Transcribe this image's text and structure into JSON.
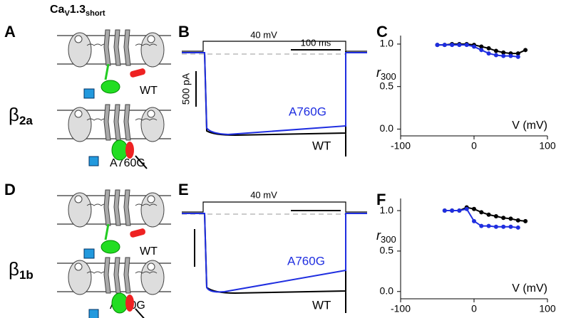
{
  "construct": {
    "base": "Ca",
    "sub1": "V",
    "mid": "1.3",
    "sub2": "short"
  },
  "panels": [
    "A",
    "B",
    "C",
    "D",
    "E",
    "F"
  ],
  "beta": [
    {
      "symbol": "β",
      "sub": "2a"
    },
    {
      "symbol": "β",
      "sub": "1b"
    }
  ],
  "wt": "WT",
  "mutant": "A760G",
  "voltage": "40 mV",
  "time_scale": "100 ms",
  "current_scale": "500 pA",
  "chart_data": [
    {
      "type": "scatter",
      "xlabel": "V (mV)",
      "ylabel": {
        "base": "r",
        "sub": "300"
      },
      "xlim": [
        -100,
        100
      ],
      "xticks": [
        -100,
        0,
        100
      ],
      "ylim": [
        -0.08,
        1.1
      ],
      "yticks": [
        {
          "value": 0,
          "label": "0.0"
        },
        {
          "value": 0.5,
          "label": "0.5"
        },
        {
          "value": 1,
          "label": "1.0"
        }
      ],
      "series": [
        {
          "name": "WT",
          "color": "#000000",
          "x": [
            -50,
            -40,
            -30,
            -20,
            -10,
            0,
            10,
            20,
            30,
            40,
            50,
            60,
            70
          ],
          "values": [
            0.99,
            0.99,
            1.0,
            1.0,
            1.0,
            0.99,
            0.97,
            0.95,
            0.92,
            0.9,
            0.89,
            0.89,
            0.93
          ]
        },
        {
          "name": "A760G",
          "color": "#1f2ee0",
          "x": [
            -50,
            -40,
            -30,
            -20,
            -10,
            0,
            10,
            20,
            30,
            40,
            50,
            60
          ],
          "values": [
            0.99,
            0.99,
            0.99,
            0.99,
            0.99,
            0.97,
            0.93,
            0.89,
            0.87,
            0.86,
            0.86,
            0.85
          ]
        }
      ]
    },
    {
      "type": "scatter",
      "xlabel": "V (mV)",
      "ylabel": {
        "base": "r",
        "sub": "300"
      },
      "xlim": [
        -100,
        100
      ],
      "xticks": [
        -100,
        0,
        100
      ],
      "ylim": [
        -0.09,
        1.15
      ],
      "yticks": [
        {
          "value": 0,
          "label": "0.0"
        },
        {
          "value": 0.5,
          "label": "0.5"
        },
        {
          "value": 1,
          "label": "1.0"
        }
      ],
      "series": [
        {
          "name": "WT",
          "color": "#000000",
          "x": [
            -40,
            -30,
            -20,
            -10,
            0,
            10,
            20,
            30,
            40,
            50,
            60,
            70
          ],
          "values": [
            1.0,
            1.0,
            1.0,
            1.04,
            1.02,
            0.98,
            0.95,
            0.93,
            0.91,
            0.9,
            0.88,
            0.87
          ]
        },
        {
          "name": "A760G",
          "color": "#1f2ee0",
          "x": [
            -40,
            -30,
            -20,
            -10,
            0,
            10,
            20,
            30,
            40,
            50,
            60
          ],
          "values": [
            1.0,
            1.0,
            1.0,
            1.02,
            0.87,
            0.81,
            0.81,
            0.8,
            0.8,
            0.8,
            0.79
          ]
        }
      ]
    }
  ]
}
